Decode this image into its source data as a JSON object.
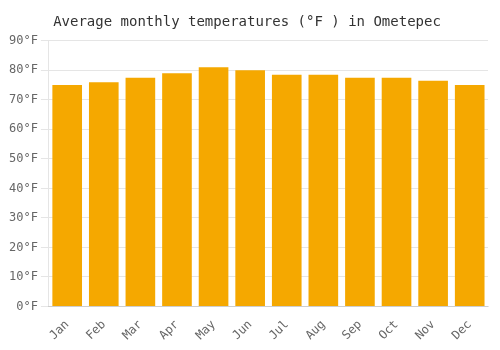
{
  "chart_data": {
    "type": "bar",
    "title": "Average monthly temperatures (°F ) in Ometepec",
    "categories": [
      "Jan",
      "Feb",
      "Mar",
      "Apr",
      "May",
      "Jun",
      "Jul",
      "Aug",
      "Sep",
      "Oct",
      "Nov",
      "Dec"
    ],
    "values": [
      75.0,
      76.0,
      77.5,
      79.0,
      81.0,
      80.0,
      78.5,
      78.5,
      77.5,
      77.5,
      76.5,
      75.0
    ],
    "color": "#F5A800",
    "ylim": [
      0,
      90
    ],
    "yticks": [
      {
        "value": 0,
        "label": "0°F"
      },
      {
        "value": 10,
        "label": "10°F"
      },
      {
        "value": 20,
        "label": "20°F"
      },
      {
        "value": 30,
        "label": "30°F"
      },
      {
        "value": 40,
        "label": "40°F"
      },
      {
        "value": 50,
        "label": "50°F"
      },
      {
        "value": 60,
        "label": "60°F"
      },
      {
        "value": 70,
        "label": "70°F"
      },
      {
        "value": 80,
        "label": "80°F"
      },
      {
        "value": 90,
        "label": "90°F"
      }
    ],
    "grid": true
  }
}
